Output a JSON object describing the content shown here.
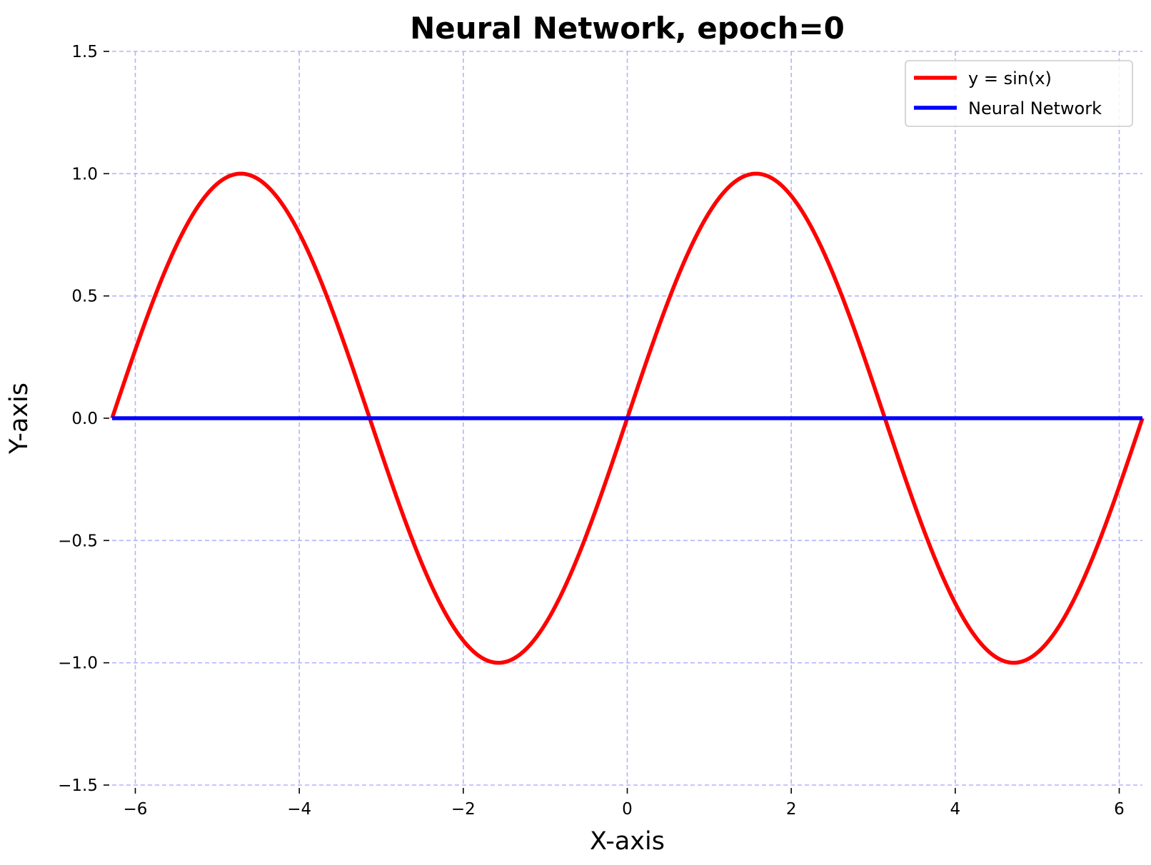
{
  "chart_data": {
    "type": "line",
    "title": "Neural Network, epoch=0",
    "xlabel": "X-axis",
    "ylabel": "Y-axis",
    "xlim": [
      -6.283,
      6.283
    ],
    "ylim": [
      -1.5,
      1.5
    ],
    "xticks": [
      -6,
      -4,
      -2,
      0,
      2,
      4,
      6
    ],
    "yticks": [
      -1.5,
      -1.0,
      -0.5,
      0.0,
      0.5,
      1.0,
      1.5
    ],
    "xtick_labels": [
      "−6",
      "−4",
      "−2",
      "0",
      "2",
      "4",
      "6"
    ],
    "ytick_labels": [
      "−1.5",
      "−1.0",
      "−0.5",
      "0.0",
      "0.5",
      "1.0",
      "1.5"
    ],
    "grid": true,
    "legend_position": "top-right",
    "series": [
      {
        "name": "y = sin(x)",
        "color": "#ff0000",
        "x": [
          -6.283,
          -5.498,
          -4.712,
          -3.927,
          -3.142,
          -2.356,
          -1.571,
          -0.785,
          0.0,
          0.785,
          1.571,
          2.356,
          3.142,
          3.927,
          4.712,
          5.498,
          6.283
        ],
        "y": [
          0.0,
          0.707,
          1.0,
          0.707,
          0.0,
          -0.707,
          -1.0,
          -0.707,
          0.0,
          0.707,
          1.0,
          0.707,
          0.0,
          -0.707,
          -1.0,
          -0.707,
          0.0
        ]
      },
      {
        "name": "Neural Network",
        "color": "#0000ff",
        "x": [
          -6.283,
          6.283
        ],
        "y": [
          0.0,
          0.0
        ]
      }
    ]
  }
}
